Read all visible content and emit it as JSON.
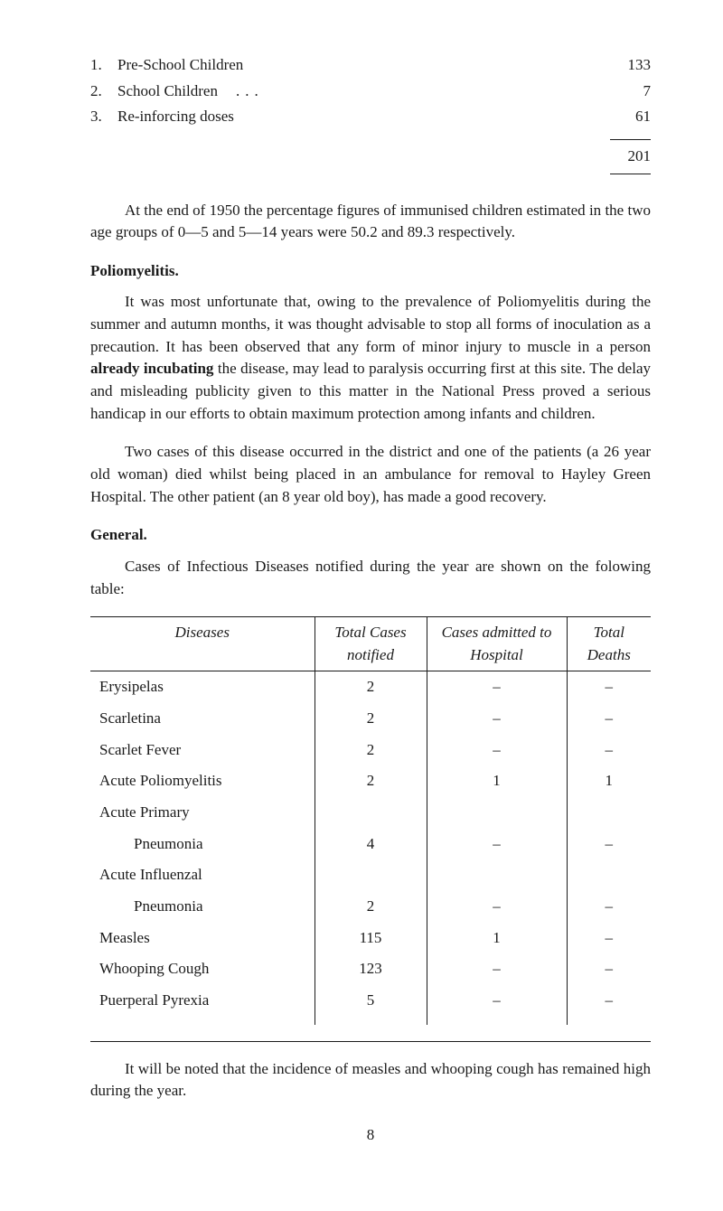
{
  "numbered_list": [
    {
      "num": "1.",
      "label": "Pre-School Children",
      "value": "133"
    },
    {
      "num": "2.",
      "label": "School Children",
      "value": "7"
    },
    {
      "num": "3.",
      "label": "Re-inforcing doses",
      "value": "61"
    }
  ],
  "list_total": "201",
  "paragraphs": {
    "p1": "At the end of 1950 the percentage figures of immunised children estimated in the two age groups of 0—5 and 5—14 years were 50.2 and 89.3 respectively.",
    "h1": "Poliomyelitis.",
    "p2": "It was most unfortunate that, owing to the prevalence of Poliomyelitis during the summer and autumn months, it was thought advisable to stop all forms of inoculation as a precaution. It has been observed that any form of minor injury to muscle in a person already incubating the disease, may lead to paralysis occurring first at this site. The delay and misleading publicity given to this matter in the National Press proved a serious handicap in our efforts to obtain maximum protection among infants and children.",
    "p3": "Two cases of this disease occurred in the district and one of the patients (a 26 year old woman) died whilst being placed in an ambulance for removal to Hayley Green Hospital. The other patient (an 8 year old boy), has made a good recovery.",
    "h2": "General.",
    "p4": "Cases of Infectious Diseases notified during the year are shown on the folowing table:",
    "p5": "It will be noted that the incidence of measles and whooping cough has remained high during the year."
  },
  "table": {
    "headers": {
      "diseases": "Diseases",
      "total_cases": "Total Cases notified",
      "admitted": "Cases admitted to Hospital",
      "deaths": "Total Deaths"
    },
    "rows": [
      {
        "disease": "Erysipelas",
        "total": "2",
        "admitted": "–",
        "deaths": "–",
        "sub": false
      },
      {
        "disease": "Scarletina",
        "total": "2",
        "admitted": "–",
        "deaths": "–",
        "sub": false
      },
      {
        "disease": "Scarlet Fever",
        "total": "2",
        "admitted": "–",
        "deaths": "–",
        "sub": false
      },
      {
        "disease": "Acute Poliomyelitis",
        "total": "2",
        "admitted": "1",
        "deaths": "1",
        "sub": false
      },
      {
        "disease": "Acute Primary",
        "total": "",
        "admitted": "",
        "deaths": "",
        "sub": false
      },
      {
        "disease": "Pneumonia",
        "total": "4",
        "admitted": "–",
        "deaths": "–",
        "sub": true
      },
      {
        "disease": "Acute Influenzal",
        "total": "",
        "admitted": "",
        "deaths": "",
        "sub": false
      },
      {
        "disease": "Pneumonia",
        "total": "2",
        "admitted": "–",
        "deaths": "–",
        "sub": true
      },
      {
        "disease": "Measles",
        "total": "115",
        "admitted": "1",
        "deaths": "–",
        "sub": false
      },
      {
        "disease": "Whooping Cough",
        "total": "123",
        "admitted": "–",
        "deaths": "–",
        "sub": false
      },
      {
        "disease": "Puerperal Pyrexia",
        "total": "5",
        "admitted": "–",
        "deaths": "–",
        "sub": false
      }
    ]
  },
  "page_number": "8",
  "bold_words": {
    "already_incubating": "already incubating"
  }
}
